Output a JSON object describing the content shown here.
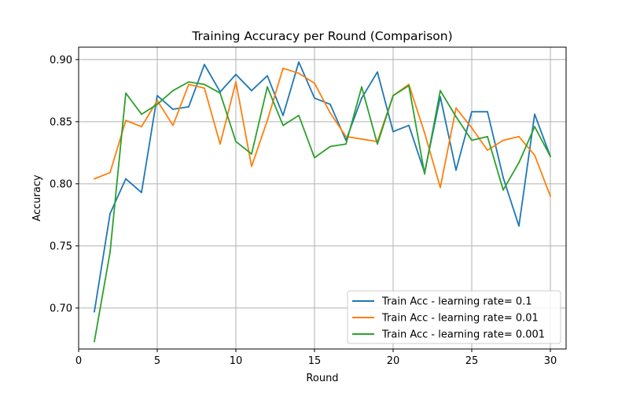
{
  "chart_data": {
    "type": "line",
    "title": "Training Accuracy per Round (Comparison)",
    "xlabel": "Round",
    "ylabel": "Accuracy",
    "xlim": [
      0,
      31
    ],
    "ylim": [
      0.667,
      0.91
    ],
    "xticks": [
      0,
      5,
      10,
      15,
      20,
      25,
      30
    ],
    "yticks": [
      0.7,
      0.75,
      0.8,
      0.85,
      0.9
    ],
    "xtick_labels": [
      "0",
      "5",
      "10",
      "15",
      "20",
      "25",
      "30"
    ],
    "ytick_labels": [
      "0.70",
      "0.75",
      "0.80",
      "0.85",
      "0.90"
    ],
    "grid": true,
    "legend_position": "lower-right",
    "x": [
      1,
      2,
      3,
      4,
      5,
      6,
      7,
      8,
      9,
      10,
      11,
      12,
      13,
      14,
      15,
      16,
      17,
      18,
      19,
      20,
      21,
      22,
      23,
      24,
      25,
      26,
      27,
      28,
      29,
      30
    ],
    "series": [
      {
        "name": "Train Acc - learning rate= 0.1",
        "color": "#1f77b4",
        "values": [
          0.697,
          0.776,
          0.804,
          0.793,
          0.871,
          0.86,
          0.862,
          0.896,
          0.874,
          0.888,
          0.875,
          0.887,
          0.855,
          0.898,
          0.869,
          0.864,
          0.835,
          0.869,
          0.89,
          0.842,
          0.847,
          0.809,
          0.87,
          0.811,
          0.858,
          0.858,
          0.805,
          0.766,
          0.856,
          0.822
        ]
      },
      {
        "name": "Train Acc - learning rate= 0.01",
        "color": "#ff7f0e",
        "values": [
          0.804,
          0.809,
          0.851,
          0.846,
          0.867,
          0.847,
          0.88,
          0.877,
          0.832,
          0.882,
          0.814,
          0.851,
          0.893,
          0.889,
          0.881,
          0.857,
          0.838,
          0.836,
          0.834,
          0.871,
          0.88,
          0.841,
          0.797,
          0.861,
          0.845,
          0.827,
          0.835,
          0.838,
          0.823,
          0.79
        ]
      },
      {
        "name": "Train Acc - learning rate= 0.001",
        "color": "#2ca02c",
        "values": [
          0.673,
          0.745,
          0.873,
          0.856,
          0.864,
          0.875,
          0.882,
          0.88,
          0.873,
          0.834,
          0.824,
          0.878,
          0.847,
          0.855,
          0.821,
          0.83,
          0.832,
          0.878,
          0.832,
          0.871,
          0.879,
          0.808,
          0.875,
          0.854,
          0.835,
          0.838,
          0.795,
          0.817,
          0.846,
          0.822
        ]
      }
    ]
  }
}
